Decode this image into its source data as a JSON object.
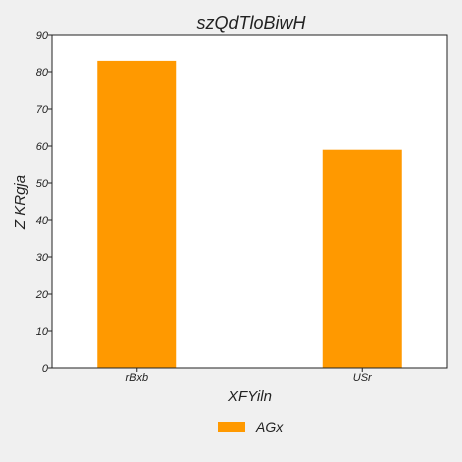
{
  "chart_data": {
    "type": "bar",
    "title": "szQdTloBiwH",
    "xlabel": "XFYiln",
    "ylabel": "Z KRgja",
    "categories": [
      "rBxb",
      "USr"
    ],
    "series": [
      {
        "name": "AGx",
        "values": [
          83,
          59
        ]
      }
    ],
    "ylim": [
      0,
      90
    ],
    "yticks": [
      0,
      10,
      20,
      30,
      40,
      50,
      60,
      70,
      80,
      90
    ],
    "grid": false,
    "legend_position": "bottom-center",
    "colors": {
      "bar": "#ff9900",
      "plot_background": "#ffffff",
      "page_background": "#f0f0f0",
      "axis": "#222222"
    }
  }
}
